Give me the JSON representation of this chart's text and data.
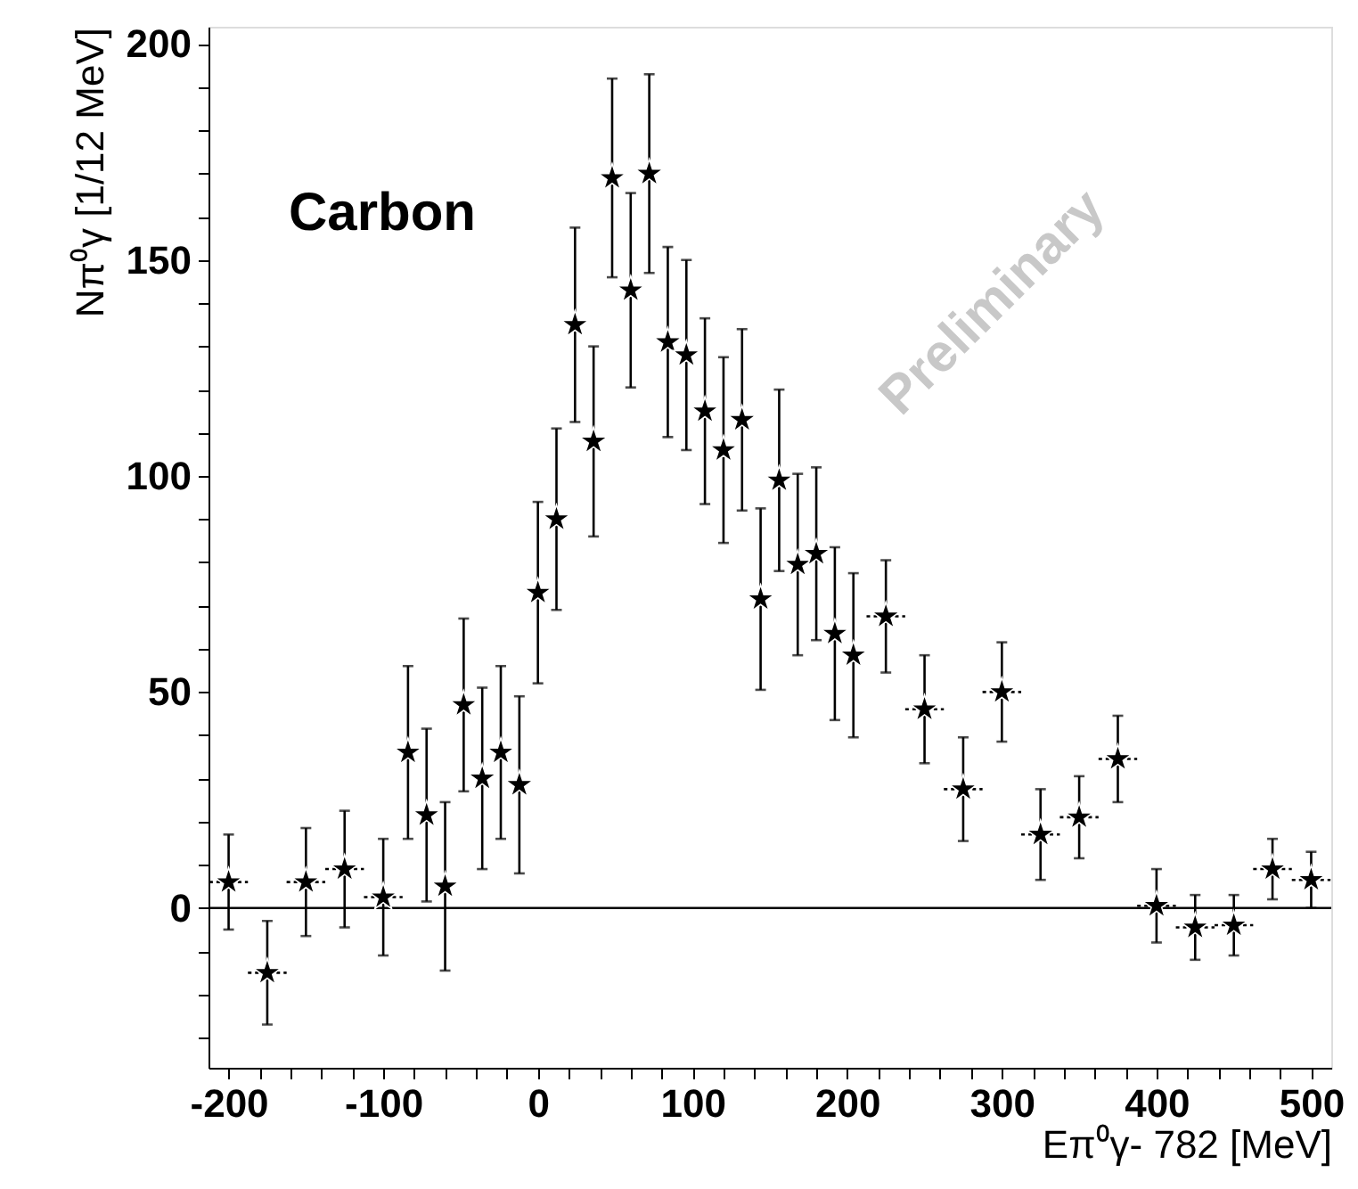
{
  "chart_data": {
    "type": "scatter",
    "xlabel": "Eπ⁰γ- 782 [MeV]",
    "ylabel": "Nπ⁰γ [1/12 MeV]",
    "annotations": [
      "Carbon",
      "Preliminary"
    ],
    "x": [
      -200,
      -175,
      -150,
      -125,
      -100,
      -84,
      -72,
      -60,
      -48,
      -36,
      -24,
      -12,
      0,
      12,
      24,
      36,
      48,
      60,
      72,
      84,
      96,
      108,
      120,
      132,
      144,
      156,
      168,
      180,
      192,
      204,
      225,
      250,
      275,
      300,
      325,
      350,
      375,
      400,
      425,
      450,
      475,
      500
    ],
    "series": [
      {
        "color": "#000000",
        "values": [
          6,
          -15,
          6,
          9,
          2.5,
          36,
          21.5,
          5,
          47,
          30,
          36,
          28.5,
          73,
          90,
          135,
          108,
          169,
          143,
          170,
          131,
          128,
          115,
          106,
          113,
          71.5,
          99,
          79.5,
          82,
          63.5,
          58.5,
          67.5,
          46,
          27.5,
          50,
          17,
          21,
          34.5,
          0.5,
          -4.5,
          -4,
          9,
          6.5
        ],
        "errors": [
          11,
          12,
          12.5,
          13.5,
          13.5,
          20,
          20,
          19.5,
          20,
          21,
          20,
          20.5,
          21,
          21,
          22.5,
          22,
          23,
          22.5,
          23,
          22,
          22,
          21.5,
          21.5,
          21,
          21,
          21,
          21,
          20,
          20,
          19,
          13,
          12.5,
          12,
          11.5,
          10.5,
          9.5,
          10,
          8.5,
          7.5,
          7,
          7,
          6.5
        ],
        "xerrors": [
          12.5,
          12.5,
          12.5,
          12.5,
          12.5,
          null,
          null,
          null,
          null,
          null,
          null,
          null,
          null,
          null,
          null,
          null,
          null,
          null,
          null,
          null,
          null,
          null,
          null,
          null,
          null,
          null,
          null,
          null,
          null,
          null,
          12.5,
          12.5,
          12.5,
          12.5,
          12.5,
          12.5,
          12.5,
          12.5,
          12.5,
          12.5,
          12.5,
          12.5
        ]
      }
    ],
    "marker": "star",
    "xlim": [
      -213,
      513
    ],
    "ylim": [
      -37,
      204
    ],
    "xticks": [
      -200,
      {
        "value": -180,
        "label": null
      },
      {
        "value": -160,
        "label": null
      },
      {
        "value": -140,
        "label": null
      },
      {
        "value": -120,
        "label": null
      },
      -100,
      {
        "value": -80,
        "label": null
      },
      {
        "value": -60,
        "label": null
      },
      {
        "value": -40,
        "label": null
      },
      {
        "value": -20,
        "label": null
      },
      0,
      {
        "value": 20,
        "label": null
      },
      {
        "value": 40,
        "label": null
      },
      {
        "value": 60,
        "label": null
      },
      {
        "value": 80,
        "label": null
      },
      100,
      {
        "value": 120,
        "label": null
      },
      {
        "value": 140,
        "label": null
      },
      {
        "value": 160,
        "label": null
      },
      {
        "value": 180,
        "label": null
      },
      200,
      {
        "value": 220,
        "label": null
      },
      {
        "value": 240,
        "label": null
      },
      {
        "value": 260,
        "label": null
      },
      {
        "value": 280,
        "label": null
      },
      300,
      {
        "value": 320,
        "label": null
      },
      {
        "value": 340,
        "label": null
      },
      {
        "value": 360,
        "label": null
      },
      {
        "value": 380,
        "label": null
      },
      400,
      {
        "value": 420,
        "label": null
      },
      {
        "value": 440,
        "label": null
      },
      {
        "value": 460,
        "label": null
      },
      {
        "value": 480,
        "label": null
      },
      500
    ],
    "yticks": [
      {
        "value": -30,
        "label": null
      },
      {
        "value": -20,
        "label": null
      },
      {
        "value": -10,
        "label": null
      },
      0,
      {
        "value": 10,
        "label": null
      },
      {
        "value": 20,
        "label": null
      },
      {
        "value": 30,
        "label": null
      },
      {
        "value": 40,
        "label": null
      },
      50,
      {
        "value": 60,
        "label": null
      },
      {
        "value": 70,
        "label": null
      },
      {
        "value": 80,
        "label": null
      },
      {
        "value": 90,
        "label": null
      },
      100,
      {
        "value": 110,
        "label": null
      },
      {
        "value": 120,
        "label": null
      },
      {
        "value": 130,
        "label": null
      },
      {
        "value": 140,
        "label": null
      },
      150,
      {
        "value": 160,
        "label": null
      },
      {
        "value": 170,
        "label": null
      },
      {
        "value": 180,
        "label": null
      },
      {
        "value": 190,
        "label": null
      },
      200
    ],
    "ref_lines": [
      {
        "axis": "y",
        "value": 0,
        "color": "#000000"
      }
    ],
    "grid": false
  }
}
